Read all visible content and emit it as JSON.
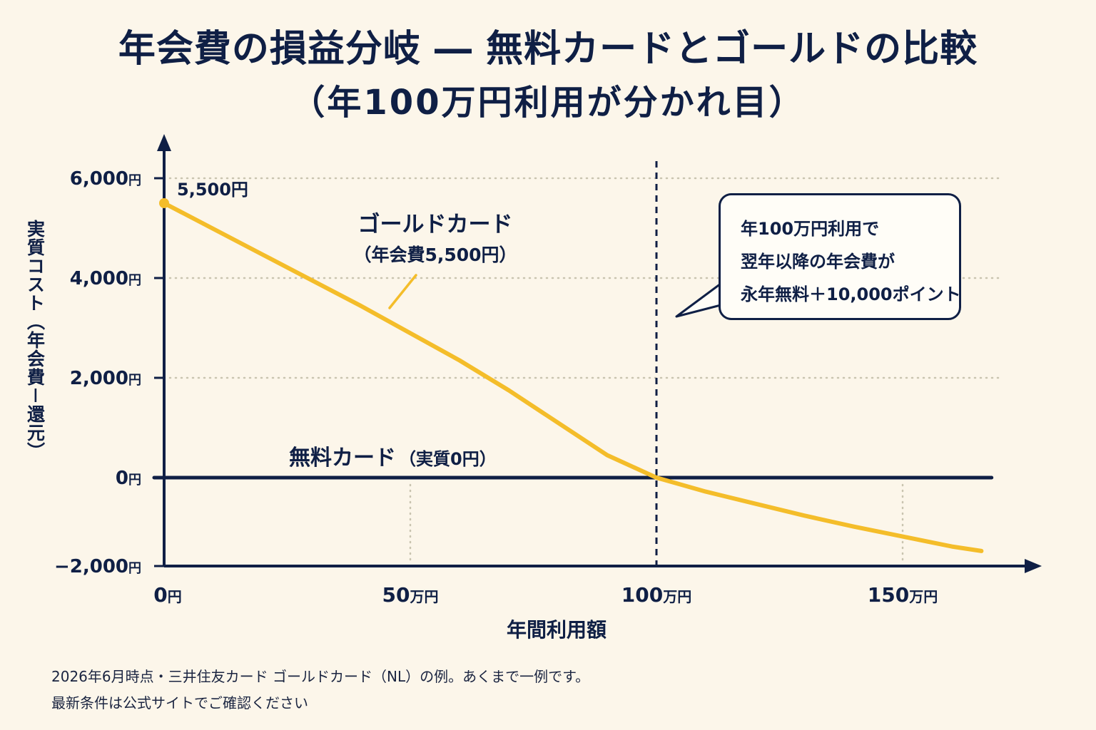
{
  "title": {
    "line1": "年会費の損益分岐 ― 無料カードとゴールドの比較",
    "line2": "（年100万円利用が分かれ目）"
  },
  "callout": {
    "lines": [
      "年100万円利用で",
      "翌年以降の年会費が",
      "永年無料＋10,000ポイント"
    ]
  },
  "footnote": {
    "line1": "2026年6月時点・三井住友カード ゴールドカード（NL）の例。あくまで一例です。",
    "line2": "最新条件は公式サイトでご確認ください"
  },
  "colors": {
    "navy": "#0f1f45",
    "gold": "#f4bd2a",
    "background": "#fcf6ea"
  },
  "chart_data": {
    "type": "line",
    "title": "年会費の損益分岐 ― 無料カードとゴールドの比較",
    "xlabel": "年間利用額",
    "ylabel": "実質コスト（年会費－還元）",
    "xlim": [
      0,
      170
    ],
    "ylim": [
      -2000,
      6400
    ],
    "x_ticks": [
      {
        "value": 0,
        "num": "0",
        "unit": "円"
      },
      {
        "value": 50,
        "num": "50",
        "unit": "万円"
      },
      {
        "value": 100,
        "num": "100",
        "unit": "万円"
      },
      {
        "value": 150,
        "num": "150",
        "unit": "万円"
      }
    ],
    "y_ticks": [
      {
        "value": 6000,
        "num": "6,000",
        "unit": "円"
      },
      {
        "value": 4000,
        "num": "4,000",
        "unit": "円"
      },
      {
        "value": 2000,
        "num": "2,000",
        "unit": "円"
      },
      {
        "value": 0,
        "num": "0",
        "unit": "円"
      },
      {
        "value": -2000,
        "num": "−2,000",
        "unit": "円"
      }
    ],
    "grid": "dotted",
    "series": [
      {
        "name": "ゴールドカード（年会費5,500円）",
        "label_line1": "ゴールドカード",
        "label_line2": "（年会費5,500円）",
        "color": "#f4bd2a",
        "x": [
          0,
          20,
          40,
          60,
          70,
          80,
          90,
          100,
          110,
          120,
          130,
          140,
          150,
          160,
          166
        ],
        "y": [
          5500,
          4470,
          3440,
          2350,
          1750,
          1100,
          450,
          0,
          -280,
          -520,
          -760,
          -980,
          -1180,
          -1380,
          -1470
        ]
      },
      {
        "name": "無料カード（実質0円）",
        "label_main": "無料カード",
        "label_paren": "（実質0円）",
        "color": "#0f1f45",
        "x": [
          0,
          168
        ],
        "y": [
          0,
          0
        ]
      }
    ],
    "annotations": {
      "start_point": {
        "x": 0,
        "y": 5500,
        "label": "5,500円"
      },
      "breakeven_x": 100
    }
  }
}
